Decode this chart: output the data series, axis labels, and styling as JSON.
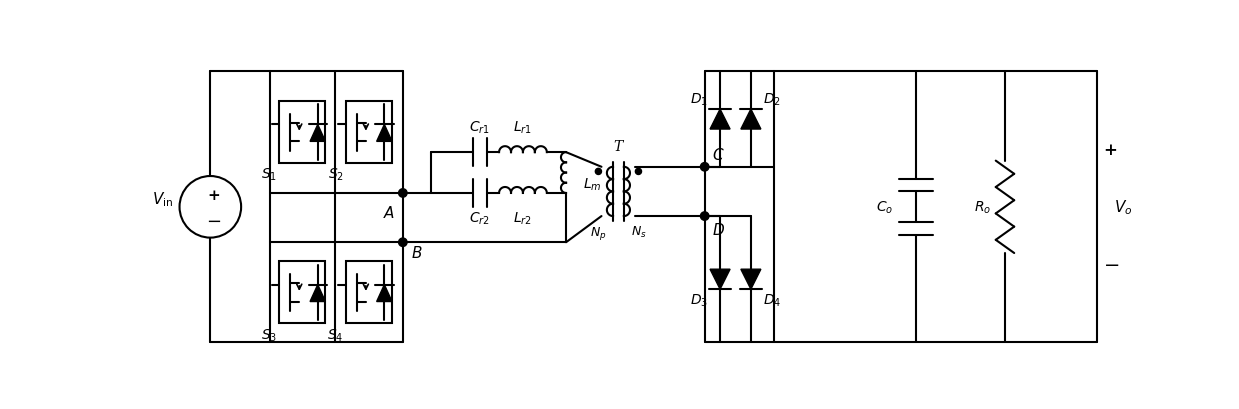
{
  "bg_color": "#ffffff",
  "line_color": "#000000",
  "lw": 1.5,
  "figsize": [
    12.39,
    4.1
  ],
  "dpi": 100
}
